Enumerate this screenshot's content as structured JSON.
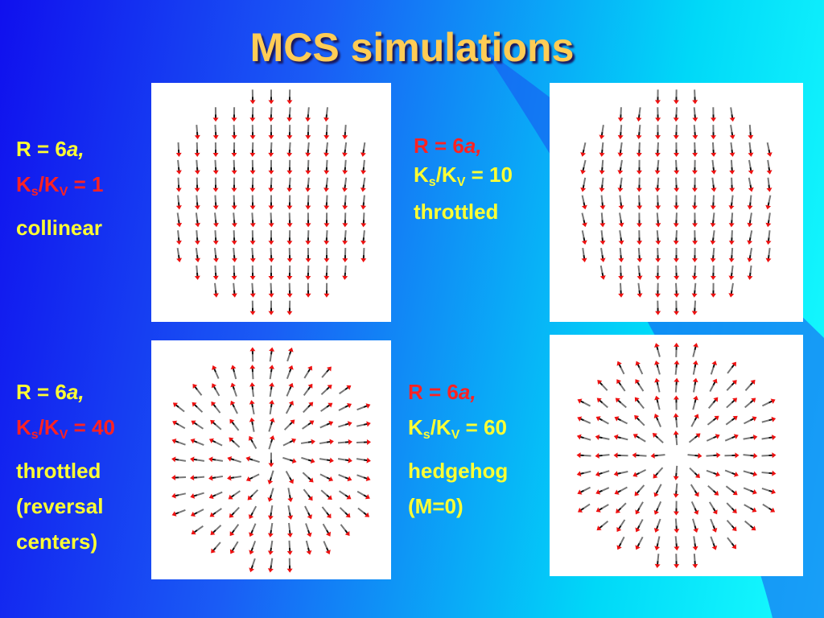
{
  "title": "MCS simulations",
  "blocks": [
    {
      "r_line": [
        "R = 6",
        "a,"
      ],
      "ratio_line": [
        "K",
        "s",
        "/K",
        "V",
        " = 1"
      ],
      "notes": [
        "collinear"
      ]
    },
    {
      "r_line": [
        "R = 6",
        "a,"
      ],
      "ratio_line": [
        "K",
        "s",
        "/K",
        "V",
        " = 10"
      ],
      "notes": [
        "throttled"
      ]
    },
    {
      "r_line": [
        "R = 6",
        "a,"
      ],
      "ratio_line": [
        "K",
        "s",
        "/K",
        "V",
        " = 40"
      ],
      "notes": [
        "throttled",
        "(reversal",
        "centers)"
      ]
    },
    {
      "r_line": [
        "R = 6",
        "a,"
      ],
      "ratio_line": [
        "K",
        "s",
        "/K",
        "V",
        " = 60"
      ],
      "notes": [
        "hedgehog",
        "(M=0)"
      ]
    }
  ]
}
